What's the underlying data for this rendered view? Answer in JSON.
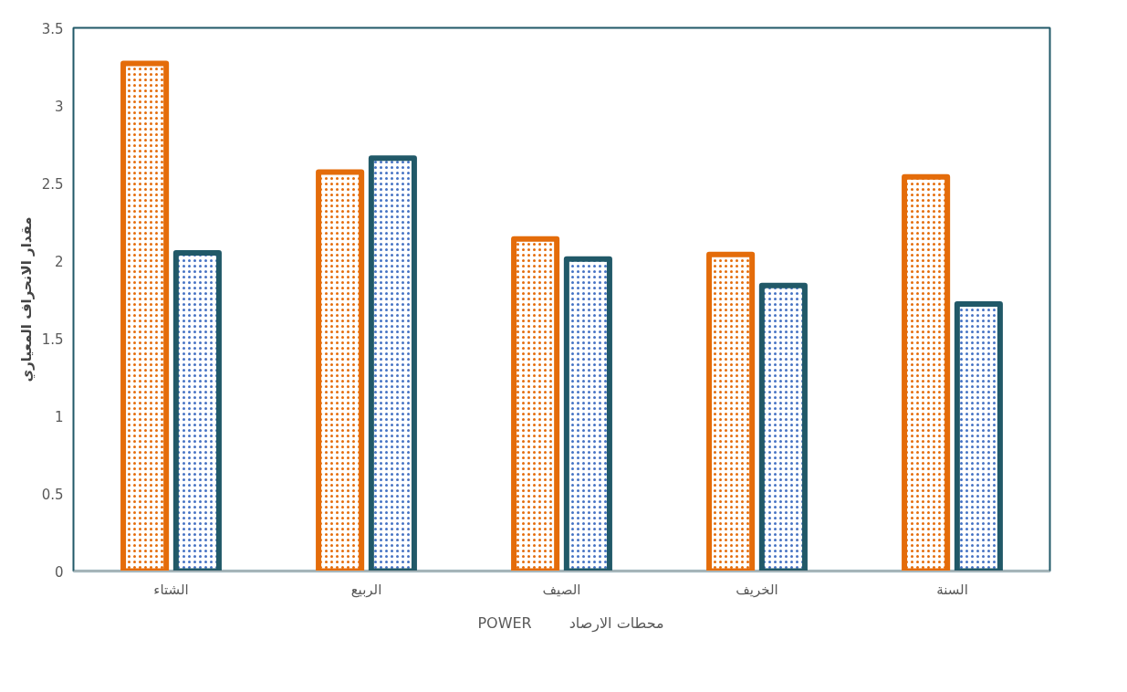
{
  "chart_data": {
    "type": "bar",
    "ylabel": "مقدار الانحراف المعياري",
    "categories": [
      "الشتاء",
      "الربيع",
      "الصيف",
      "الخريف",
      "السنة"
    ],
    "series": [
      {
        "name": "POWER",
        "color": "#e46c0a",
        "values": [
          3.27,
          2.57,
          2.14,
          2.04,
          2.54
        ]
      },
      {
        "name": "محطات الارصاد",
        "color": "#215968",
        "values": [
          2.05,
          2.66,
          2.01,
          1.84,
          1.72
        ]
      }
    ],
    "ylim": [
      0,
      3.5
    ],
    "yticks": [
      0,
      0.5,
      1,
      1.5,
      2,
      2.5,
      3,
      3.5
    ],
    "grid": false,
    "legend": "bottom"
  }
}
